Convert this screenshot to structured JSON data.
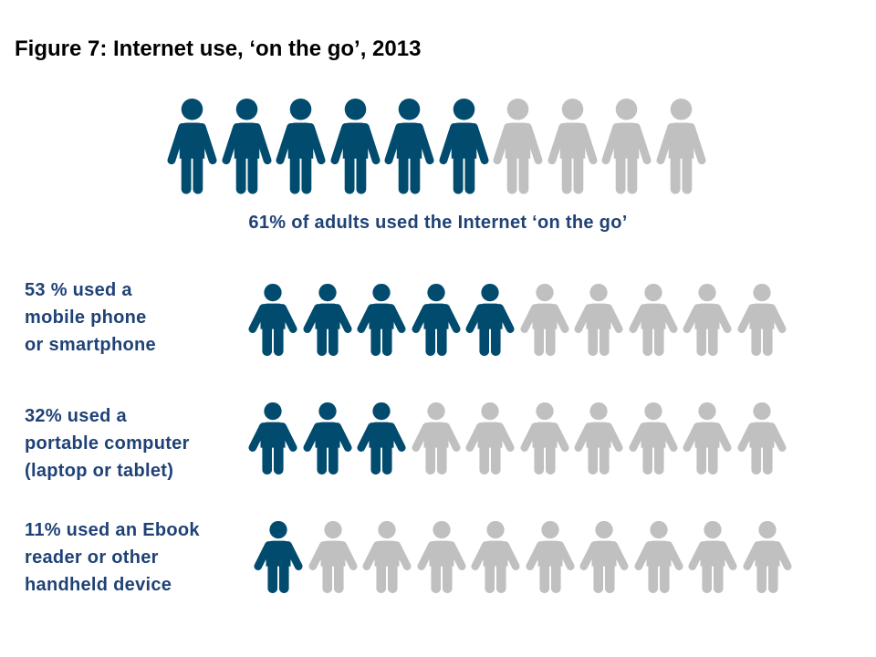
{
  "title": "Figure 7: Internet use, ‘on the go’, 2013",
  "colors": {
    "filled": "#004b6e",
    "empty": "#c0c0c0",
    "text": "#1f4276"
  },
  "icon": "person-icon",
  "chart_data": {
    "type": "pictogram",
    "title": "Figure 7: Internet use, ‘on the go’, 2013",
    "icons_per_row": 10,
    "rows": [
      {
        "value": 61,
        "filled_icons": 6,
        "label_lines": [
          "61%  of adults used the Internet ‘on the go’"
        ]
      },
      {
        "value": 53,
        "filled_icons": 5,
        "label_lines": [
          "53 %  used a",
          "mobile phone",
          "or smartphone"
        ]
      },
      {
        "value": 32,
        "filled_icons": 3,
        "label_lines": [
          "32%  used a",
          "portable computer",
          "(laptop or tablet)"
        ]
      },
      {
        "value": 11,
        "filled_icons": 1,
        "label_lines": [
          "11% used an Ebook",
          "reader or other",
          "handheld device"
        ]
      }
    ]
  }
}
